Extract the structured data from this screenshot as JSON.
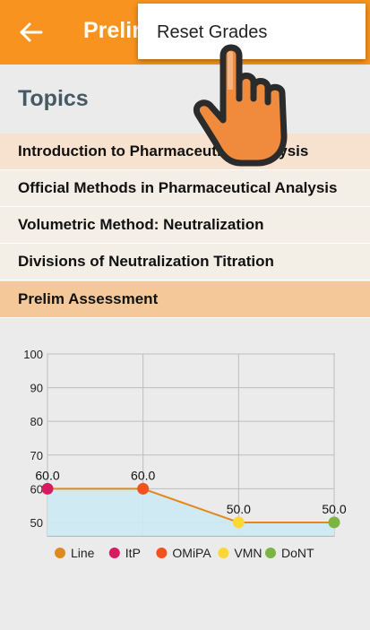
{
  "app_bar": {
    "title": "Prelim",
    "back_icon": "arrow-left-icon",
    "bg_color": "#f7931e"
  },
  "menu": {
    "items": [
      {
        "label": "Reset Grades"
      }
    ]
  },
  "topics": {
    "heading": "Topics",
    "items": [
      {
        "label": "Introduction to Pharmaceutical Analysis"
      },
      {
        "label": "Official Methods in Pharmaceutical Analysis"
      },
      {
        "label": "Volumetric Method: Neutralization"
      },
      {
        "label": "Divisions of Neutralization Titration"
      },
      {
        "label": "Prelim Assessment",
        "selected": true
      }
    ]
  },
  "overlay": {
    "icon": "pointing-hand-icon"
  },
  "chart_data": {
    "type": "line",
    "categories": [
      "ItP",
      "OMiPA",
      "VMN",
      "DoNT"
    ],
    "series": [
      {
        "name": "Line",
        "values": [
          60.0,
          60.0,
          50.0,
          50.0
        ],
        "color": "#e08a1e"
      }
    ],
    "point_labels": [
      "60.0",
      "60.0",
      "50.0",
      "50.0"
    ],
    "point_colors": [
      "#d81b60",
      "#f4511e",
      "#fdd835",
      "#7cb342"
    ],
    "legend": [
      {
        "label": "Line",
        "color": "#e08a1e"
      },
      {
        "label": "ItP",
        "color": "#d81b60"
      },
      {
        "label": "OMiPA",
        "color": "#f4511e"
      },
      {
        "label": "VMN",
        "color": "#fdd835"
      },
      {
        "label": "DoNT",
        "color": "#7cb342"
      }
    ],
    "y_ticks": [
      "100",
      "90",
      "80",
      "70",
      "60",
      "50"
    ],
    "ylim": [
      46,
      100
    ],
    "fill_color": "#cdeaf5",
    "grid": true,
    "legend_position": "bottom"
  }
}
